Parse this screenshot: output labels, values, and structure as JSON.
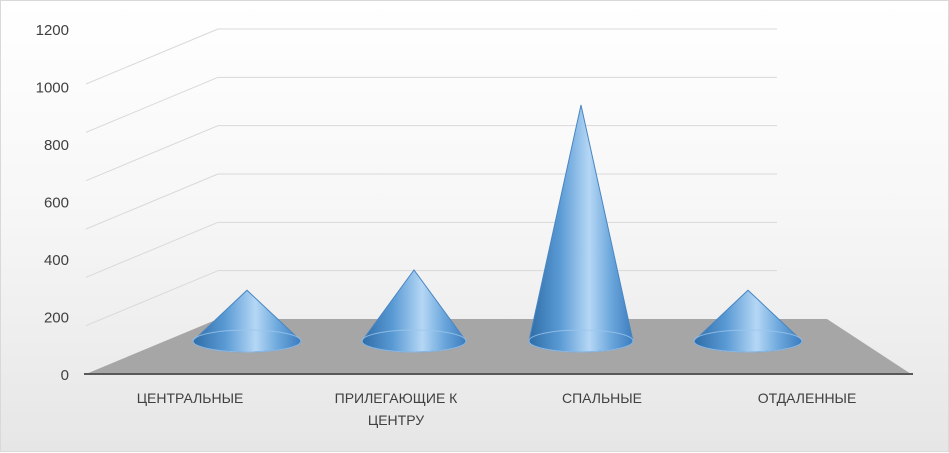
{
  "chart_data": {
    "type": "bar",
    "style": "3d-cone",
    "categories": [
      "ЦЕНТРАЛЬНЫЕ",
      "ПРИЛЕГАЮЩИЕ К ЦЕНТРУ",
      "СПАЛЬНЫЕ",
      "ОТДАЛЕННЫЕ"
    ],
    "category_lines": [
      [
        "ЦЕНТРАЛЬНЫЕ"
      ],
      [
        "ПРИЛЕГАЮЩИЕ К",
        "ЦЕНТРУ"
      ],
      [
        "СПАЛЬНЫЕ"
      ],
      [
        "ОТДАЛЕННЫЕ"
      ]
    ],
    "values": [
      200,
      280,
      930,
      200
    ],
    "yticks": [
      "0",
      "200",
      "400",
      "600",
      "800",
      "1000",
      "1200"
    ],
    "ylim": [
      0,
      1200
    ],
    "grid": true,
    "legend": "none",
    "colors": {
      "cone": "#5b9bd5",
      "cone_light": "#b5d7f5",
      "cone_dark": "#2e6da8",
      "floor": "#a6a6a6"
    }
  }
}
